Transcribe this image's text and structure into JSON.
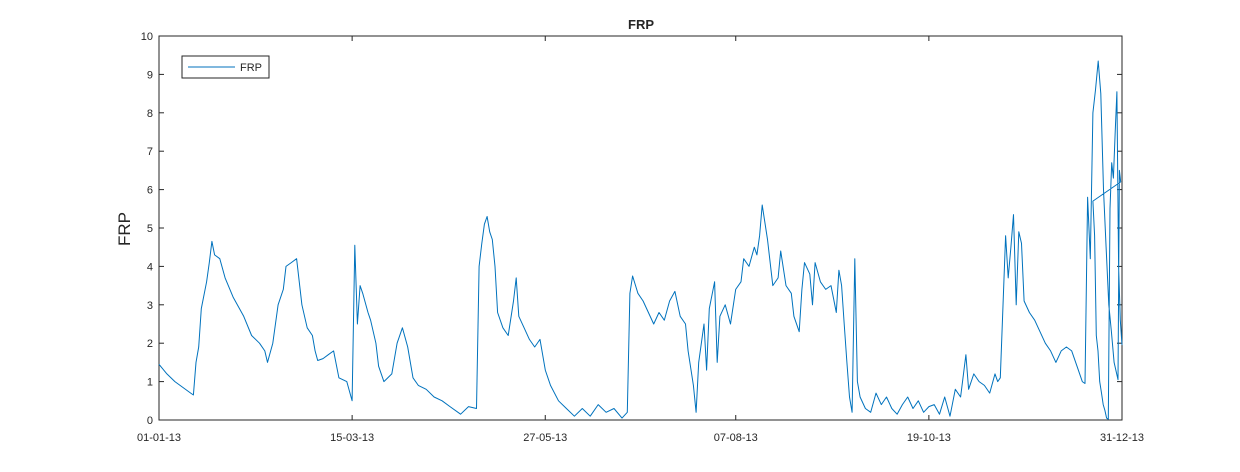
{
  "chart_data": {
    "type": "line",
    "title": "FRP",
    "xlabel": "",
    "ylabel": "FRP",
    "ylim": [
      0,
      10
    ],
    "xlim": [
      "01-01-13",
      "31-12-13"
    ],
    "yticks": [
      0,
      1,
      2,
      3,
      4,
      5,
      6,
      7,
      8,
      9,
      10
    ],
    "xticks": [
      "01-01-13",
      "15-03-13",
      "27-05-13",
      "07-08-13",
      "19-10-13",
      "31-12-13"
    ],
    "legend": {
      "placement": "top-left",
      "entries": [
        "FRP"
      ]
    },
    "grid": false,
    "series": [
      {
        "name": "FRP",
        "color": "#0072BD",
        "points": [
          [
            "01-01-13",
            1.45
          ],
          [
            "04-01-13",
            1.2
          ],
          [
            "07-01-13",
            1.0
          ],
          [
            "10-01-13",
            0.85
          ],
          [
            "13-01-13",
            0.7
          ],
          [
            "14-01-13",
            0.65
          ],
          [
            "15-01-13",
            1.5
          ],
          [
            "16-01-13",
            1.9
          ],
          [
            "17-01-13",
            2.9
          ],
          [
            "19-01-13",
            3.6
          ],
          [
            "20-01-13",
            4.1
          ],
          [
            "21-01-13",
            4.65
          ],
          [
            "22-01-13",
            4.3
          ],
          [
            "24-01-13",
            4.2
          ],
          [
            "26-01-13",
            3.7
          ],
          [
            "29-01-13",
            3.2
          ],
          [
            "02-02-13",
            2.7
          ],
          [
            "05-02-13",
            2.2
          ],
          [
            "08-02-13",
            2.0
          ],
          [
            "10-02-13",
            1.8
          ],
          [
            "11-02-13",
            1.5
          ],
          [
            "13-02-13",
            2.0
          ],
          [
            "15-02-13",
            3.0
          ],
          [
            "17-02-13",
            3.4
          ],
          [
            "18-02-13",
            4.0
          ],
          [
            "20-02-13",
            4.1
          ],
          [
            "22-02-13",
            4.2
          ],
          [
            "24-02-13",
            3.0
          ],
          [
            "26-02-13",
            2.4
          ],
          [
            "28-02-13",
            2.2
          ],
          [
            "01-03-13",
            1.8
          ],
          [
            "02-03-13",
            1.55
          ],
          [
            "04-03-13",
            1.6
          ],
          [
            "06-03-13",
            1.7
          ],
          [
            "08-03-13",
            1.8
          ],
          [
            "10-03-13",
            1.1
          ],
          [
            "13-03-13",
            1.0
          ],
          [
            "15-03-13",
            0.5
          ],
          [
            "16-03-13",
            4.55
          ],
          [
            "17-03-13",
            2.5
          ],
          [
            "18-03-13",
            3.5
          ],
          [
            "19-03-13",
            3.3
          ],
          [
            "21-03-13",
            2.8
          ],
          [
            "22-03-13",
            2.6
          ],
          [
            "24-03-13",
            2.0
          ],
          [
            "25-03-13",
            1.4
          ],
          [
            "27-03-13",
            1.0
          ],
          [
            "30-03-13",
            1.2
          ],
          [
            "01-04-13",
            2.0
          ],
          [
            "03-04-13",
            2.4
          ],
          [
            "05-04-13",
            1.9
          ],
          [
            "07-04-13",
            1.1
          ],
          [
            "09-04-13",
            0.9
          ],
          [
            "12-04-13",
            0.8
          ],
          [
            "15-04-13",
            0.6
          ],
          [
            "18-04-13",
            0.5
          ],
          [
            "21-04-13",
            0.35
          ],
          [
            "25-04-13",
            0.15
          ],
          [
            "28-04-13",
            0.35
          ],
          [
            "01-05-13",
            0.3
          ],
          [
            "02-05-13",
            4.0
          ],
          [
            "03-05-13",
            4.6
          ],
          [
            "04-05-13",
            5.1
          ],
          [
            "05-05-13",
            5.3
          ],
          [
            "06-05-13",
            4.9
          ],
          [
            "07-05-13",
            4.7
          ],
          [
            "08-05-13",
            4.0
          ],
          [
            "09-05-13",
            2.8
          ],
          [
            "11-05-13",
            2.4
          ],
          [
            "13-05-13",
            2.2
          ],
          [
            "15-05-13",
            3.1
          ],
          [
            "16-05-13",
            3.7
          ],
          [
            "17-05-13",
            2.7
          ],
          [
            "19-05-13",
            2.4
          ],
          [
            "21-05-13",
            2.1
          ],
          [
            "23-05-13",
            1.9
          ],
          [
            "25-05-13",
            2.1
          ],
          [
            "27-05-13",
            1.3
          ],
          [
            "29-05-13",
            0.9
          ],
          [
            "01-06-13",
            0.5
          ],
          [
            "04-06-13",
            0.3
          ],
          [
            "07-06-13",
            0.1
          ],
          [
            "10-06-13",
            0.3
          ],
          [
            "13-06-13",
            0.1
          ],
          [
            "16-06-13",
            0.4
          ],
          [
            "19-06-13",
            0.2
          ],
          [
            "22-06-13",
            0.3
          ],
          [
            "25-06-13",
            0.05
          ],
          [
            "27-06-13",
            0.2
          ],
          [
            "28-06-13",
            3.3
          ],
          [
            "29-06-13",
            3.75
          ],
          [
            "01-07-13",
            3.3
          ],
          [
            "03-07-13",
            3.1
          ],
          [
            "05-07-13",
            2.8
          ],
          [
            "07-07-13",
            2.5
          ],
          [
            "09-07-13",
            2.8
          ],
          [
            "11-07-13",
            2.6
          ],
          [
            "13-07-13",
            3.1
          ],
          [
            "15-07-13",
            3.35
          ],
          [
            "17-07-13",
            2.7
          ],
          [
            "19-07-13",
            2.5
          ],
          [
            "20-07-13",
            1.8
          ],
          [
            "22-07-13",
            0.9
          ],
          [
            "23-07-13",
            0.2
          ],
          [
            "24-07-13",
            1.5
          ],
          [
            "26-07-13",
            2.5
          ],
          [
            "27-07-13",
            1.3
          ],
          [
            "28-07-13",
            2.9
          ],
          [
            "30-07-13",
            3.6
          ],
          [
            "31-07-13",
            1.5
          ],
          [
            "01-08-13",
            2.7
          ],
          [
            "03-08-13",
            3.0
          ],
          [
            "05-08-13",
            2.5
          ],
          [
            "07-08-13",
            3.4
          ],
          [
            "09-08-13",
            3.6
          ],
          [
            "10-08-13",
            4.2
          ],
          [
            "12-08-13",
            4.0
          ],
          [
            "14-08-13",
            4.5
          ],
          [
            "15-08-13",
            4.3
          ],
          [
            "16-08-13",
            4.8
          ],
          [
            "17-08-13",
            5.6
          ],
          [
            "19-08-13",
            4.7
          ],
          [
            "21-08-13",
            3.5
          ],
          [
            "23-08-13",
            3.7
          ],
          [
            "24-08-13",
            4.4
          ],
          [
            "26-08-13",
            3.5
          ],
          [
            "28-08-13",
            3.3
          ],
          [
            "29-08-13",
            2.7
          ],
          [
            "31-08-13",
            2.3
          ],
          [
            "01-09-13",
            3.4
          ],
          [
            "02-09-13",
            4.1
          ],
          [
            "04-09-13",
            3.8
          ],
          [
            "05-09-13",
            3.0
          ],
          [
            "06-09-13",
            4.1
          ],
          [
            "08-09-13",
            3.6
          ],
          [
            "10-09-13",
            3.4
          ],
          [
            "12-09-13",
            3.5
          ],
          [
            "14-09-13",
            2.8
          ],
          [
            "15-09-13",
            3.9
          ],
          [
            "16-09-13",
            3.5
          ],
          [
            "17-09-13",
            2.5
          ],
          [
            "18-09-13",
            1.5
          ],
          [
            "19-09-13",
            0.6
          ],
          [
            "20-09-13",
            0.2
          ],
          [
            "21-09-13",
            4.2
          ],
          [
            "22-09-13",
            1.0
          ],
          [
            "23-09-13",
            0.6
          ],
          [
            "25-09-13",
            0.3
          ],
          [
            "27-09-13",
            0.2
          ],
          [
            "29-09-13",
            0.7
          ],
          [
            "01-10-13",
            0.4
          ],
          [
            "03-10-13",
            0.6
          ],
          [
            "05-10-13",
            0.3
          ],
          [
            "07-10-13",
            0.15
          ],
          [
            "09-10-13",
            0.4
          ],
          [
            "11-10-13",
            0.6
          ],
          [
            "13-10-13",
            0.3
          ],
          [
            "15-10-13",
            0.5
          ],
          [
            "17-10-13",
            0.2
          ],
          [
            "19-10-13",
            0.35
          ],
          [
            "21-10-13",
            0.4
          ],
          [
            "23-10-13",
            0.15
          ],
          [
            "25-10-13",
            0.6
          ],
          [
            "27-10-13",
            0.1
          ],
          [
            "29-10-13",
            0.8
          ],
          [
            "31-10-13",
            0.6
          ],
          [
            "02-11-13",
            1.7
          ],
          [
            "03-11-13",
            0.8
          ],
          [
            "05-11-13",
            1.2
          ],
          [
            "07-11-13",
            1.0
          ],
          [
            "09-11-13",
            0.9
          ],
          [
            "11-11-13",
            0.7
          ],
          [
            "13-11-13",
            1.2
          ],
          [
            "14-11-13",
            1.0
          ],
          [
            "15-11-13",
            1.1
          ],
          [
            "17-11-13",
            4.8
          ],
          [
            "18-11-13",
            3.7
          ],
          [
            "19-11-13",
            4.5
          ],
          [
            "20-11-13",
            5.35
          ],
          [
            "21-11-13",
            3.0
          ],
          [
            "22-11-13",
            4.9
          ],
          [
            "23-11-13",
            4.6
          ],
          [
            "24-11-13",
            3.1
          ],
          [
            "26-11-13",
            2.8
          ],
          [
            "28-11-13",
            2.6
          ],
          [
            "30-11-13",
            2.3
          ],
          [
            "02-12-13",
            2.0
          ],
          [
            "04-12-13",
            1.8
          ],
          [
            "06-12-13",
            1.5
          ],
          [
            "08-12-13",
            1.8
          ],
          [
            "10-12-13",
            1.9
          ],
          [
            "12-12-13",
            1.8
          ],
          [
            "14-12-13",
            1.4
          ],
          [
            "16-12-13",
            1.0
          ],
          [
            "17-12-13",
            0.95
          ],
          [
            "18-12-13",
            5.8
          ],
          [
            "19-12-13",
            4.2
          ],
          [
            "20-12-13",
            8.0
          ],
          [
            "21-12-13",
            8.6
          ],
          [
            "22-12-13",
            9.35
          ],
          [
            "23-12-13",
            8.5
          ],
          [
            "24-12-13",
            6.0
          ],
          [
            "25-12-13",
            4.5
          ],
          [
            "26-12-13",
            3.0
          ],
          [
            "27-12-13",
            2.3
          ],
          [
            "28-12-13",
            1.5
          ],
          [
            "29-12-13",
            1.2
          ],
          [
            "29-12-13",
            1.05
          ],
          [
            "30-12-13",
            6.5
          ],
          [
            "30-12-13",
            6.2
          ],
          [
            "31-12-13",
            5.7
          ],
          [
            "31-12-13",
            4.8
          ],
          [
            "31-12-13",
            2.2
          ],
          [
            "31-12-13",
            1.8
          ],
          [
            "31-12-13",
            1.0
          ],
          [
            "31-12-13",
            0.7
          ],
          [
            "31-12-13",
            0.4
          ],
          [
            "31-12-13",
            0.25
          ],
          [
            "31-12-13",
            0.05
          ],
          [
            "31-12-13",
            0.02
          ],
          [
            "31-12-13",
            5.5
          ],
          [
            "31-12-13",
            6.7
          ],
          [
            "31-12-13",
            6.3
          ],
          [
            "31-12-13",
            7.5
          ],
          [
            "31-12-13",
            8.55
          ],
          [
            "31-12-13",
            4.0
          ],
          [
            "31-12-13",
            2.6
          ],
          [
            "31-12-13",
            1.95
          ]
        ]
      }
    ]
  }
}
